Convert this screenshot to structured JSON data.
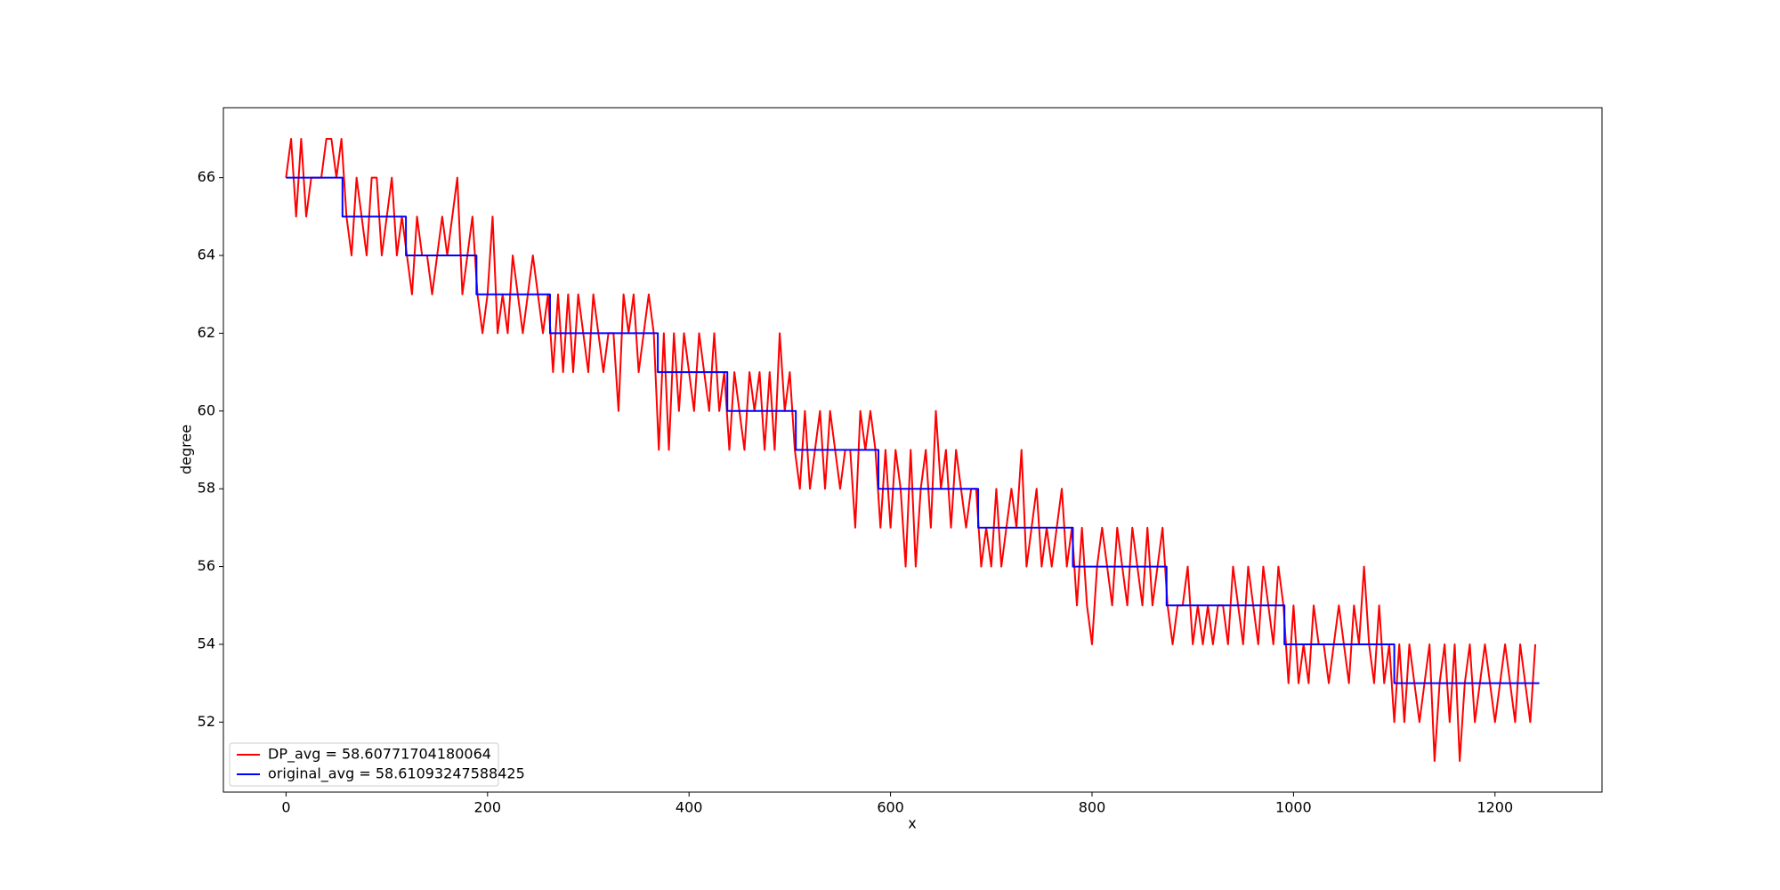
{
  "chart_data": {
    "type": "line",
    "xlabel": "x",
    "ylabel": "degree",
    "xlim": [
      -62.2,
      1306.2
    ],
    "ylim": [
      50.2,
      67.8
    ],
    "xticks": [
      0,
      200,
      400,
      600,
      800,
      1000,
      1200
    ],
    "yticks": [
      52,
      54,
      56,
      58,
      60,
      62,
      64,
      66
    ],
    "legend": "lower left",
    "series": [
      {
        "name": "DP_avg = 58.60771704180064",
        "color": "#ff0000",
        "x": [
          0,
          5,
          10,
          15,
          20,
          25,
          30,
          35,
          40,
          45,
          50,
          55,
          60,
          65,
          70,
          75,
          80,
          85,
          90,
          95,
          100,
          105,
          110,
          115,
          120,
          125,
          130,
          135,
          140,
          145,
          150,
          155,
          160,
          165,
          170,
          175,
          180,
          185,
          190,
          195,
          200,
          205,
          210,
          215,
          220,
          225,
          230,
          235,
          240,
          245,
          250,
          255,
          260,
          265,
          270,
          275,
          280,
          285,
          290,
          295,
          300,
          305,
          310,
          315,
          320,
          325,
          330,
          335,
          340,
          345,
          350,
          355,
          360,
          365,
          370,
          375,
          380,
          385,
          390,
          395,
          400,
          405,
          410,
          415,
          420,
          425,
          430,
          435,
          440,
          445,
          450,
          455,
          460,
          465,
          470,
          475,
          480,
          485,
          490,
          495,
          500,
          505,
          510,
          515,
          520,
          525,
          530,
          535,
          540,
          545,
          550,
          555,
          560,
          565,
          570,
          575,
          580,
          585,
          590,
          595,
          600,
          605,
          610,
          615,
          620,
          625,
          630,
          635,
          640,
          645,
          650,
          655,
          660,
          665,
          670,
          675,
          680,
          685,
          690,
          695,
          700,
          705,
          710,
          715,
          720,
          725,
          730,
          735,
          740,
          745,
          750,
          755,
          760,
          765,
          770,
          775,
          780,
          785,
          790,
          795,
          800,
          805,
          810,
          815,
          820,
          825,
          830,
          835,
          840,
          845,
          850,
          855,
          860,
          865,
          870,
          875,
          880,
          885,
          890,
          895,
          900,
          905,
          910,
          915,
          920,
          925,
          930,
          935,
          940,
          945,
          950,
          955,
          960,
          965,
          970,
          975,
          980,
          985,
          990,
          995,
          1000,
          1005,
          1010,
          1015,
          1020,
          1025,
          1030,
          1035,
          1040,
          1045,
          1050,
          1055,
          1060,
          1065,
          1070,
          1075,
          1080,
          1085,
          1090,
          1095,
          1100,
          1105,
          1110,
          1115,
          1120,
          1125,
          1130,
          1135,
          1140,
          1145,
          1150,
          1155,
          1160,
          1165,
          1170,
          1175,
          1180,
          1185,
          1190,
          1195,
          1200,
          1205,
          1210,
          1215,
          1220,
          1225,
          1230,
          1235,
          1240
        ],
        "values": [
          66,
          67,
          65,
          67,
          65,
          66,
          66,
          66,
          67,
          67,
          66,
          67,
          65,
          64,
          66,
          65,
          64,
          66,
          66,
          64,
          65,
          66,
          64,
          65,
          64,
          63,
          65,
          64,
          64,
          63,
          64,
          65,
          64,
          65,
          66,
          63,
          64,
          65,
          63,
          62,
          63,
          65,
          62,
          63,
          62,
          64,
          63,
          62,
          63,
          64,
          63,
          62,
          63,
          61,
          63,
          61,
          63,
          61,
          63,
          62,
          61,
          63,
          62,
          61,
          62,
          62,
          60,
          63,
          62,
          63,
          61,
          62,
          63,
          62,
          59,
          62,
          59,
          62,
          60,
          62,
          61,
          60,
          62,
          61,
          60,
          62,
          60,
          61,
          59,
          61,
          60,
          59,
          61,
          60,
          61,
          59,
          61,
          59,
          62,
          60,
          61,
          59,
          58,
          60,
          58,
          59,
          60,
          58,
          60,
          59,
          58,
          59,
          59,
          57,
          60,
          59,
          60,
          59,
          57,
          59,
          57,
          59,
          58,
          56,
          59,
          56,
          58,
          59,
          57,
          60,
          58,
          59,
          57,
          59,
          58,
          57,
          58,
          58,
          56,
          57,
          56,
          58,
          56,
          57,
          58,
          57,
          59,
          56,
          57,
          58,
          56,
          57,
          56,
          57,
          58,
          56,
          57,
          55,
          57,
          55,
          54,
          56,
          57,
          56,
          55,
          57,
          56,
          55,
          57,
          56,
          55,
          57,
          55,
          56,
          57,
          55,
          54,
          55,
          55,
          56,
          54,
          55,
          54,
          55,
          54,
          55,
          55,
          54,
          56,
          55,
          54,
          56,
          55,
          54,
          56,
          55,
          54,
          56,
          55,
          53,
          55,
          53,
          54,
          53,
          55,
          54,
          54,
          53,
          54,
          55,
          54,
          53,
          55,
          54,
          56,
          54,
          53,
          55,
          53,
          54,
          52,
          54,
          52,
          54,
          53,
          52,
          53,
          54,
          51,
          53,
          54,
          52,
          54,
          51,
          53,
          54,
          52,
          53,
          54,
          53,
          52,
          53,
          54,
          53,
          52,
          54,
          53,
          52,
          54
        ]
      },
      {
        "name": "original_avg = 58.61093247588425",
        "color": "#0000ff",
        "x": [
          0,
          56,
          56,
          119,
          119,
          189,
          189,
          262,
          262,
          369,
          369,
          438,
          438,
          506,
          506,
          588,
          588,
          687,
          687,
          781,
          781,
          874,
          874,
          991,
          991,
          1100,
          1100,
          1244
        ],
        "values": [
          66,
          66,
          65,
          65,
          64,
          64,
          63,
          63,
          62,
          62,
          61,
          61,
          60,
          60,
          59,
          59,
          58,
          58,
          57,
          57,
          56,
          56,
          55,
          55,
          54,
          54,
          53,
          53
        ]
      }
    ]
  }
}
